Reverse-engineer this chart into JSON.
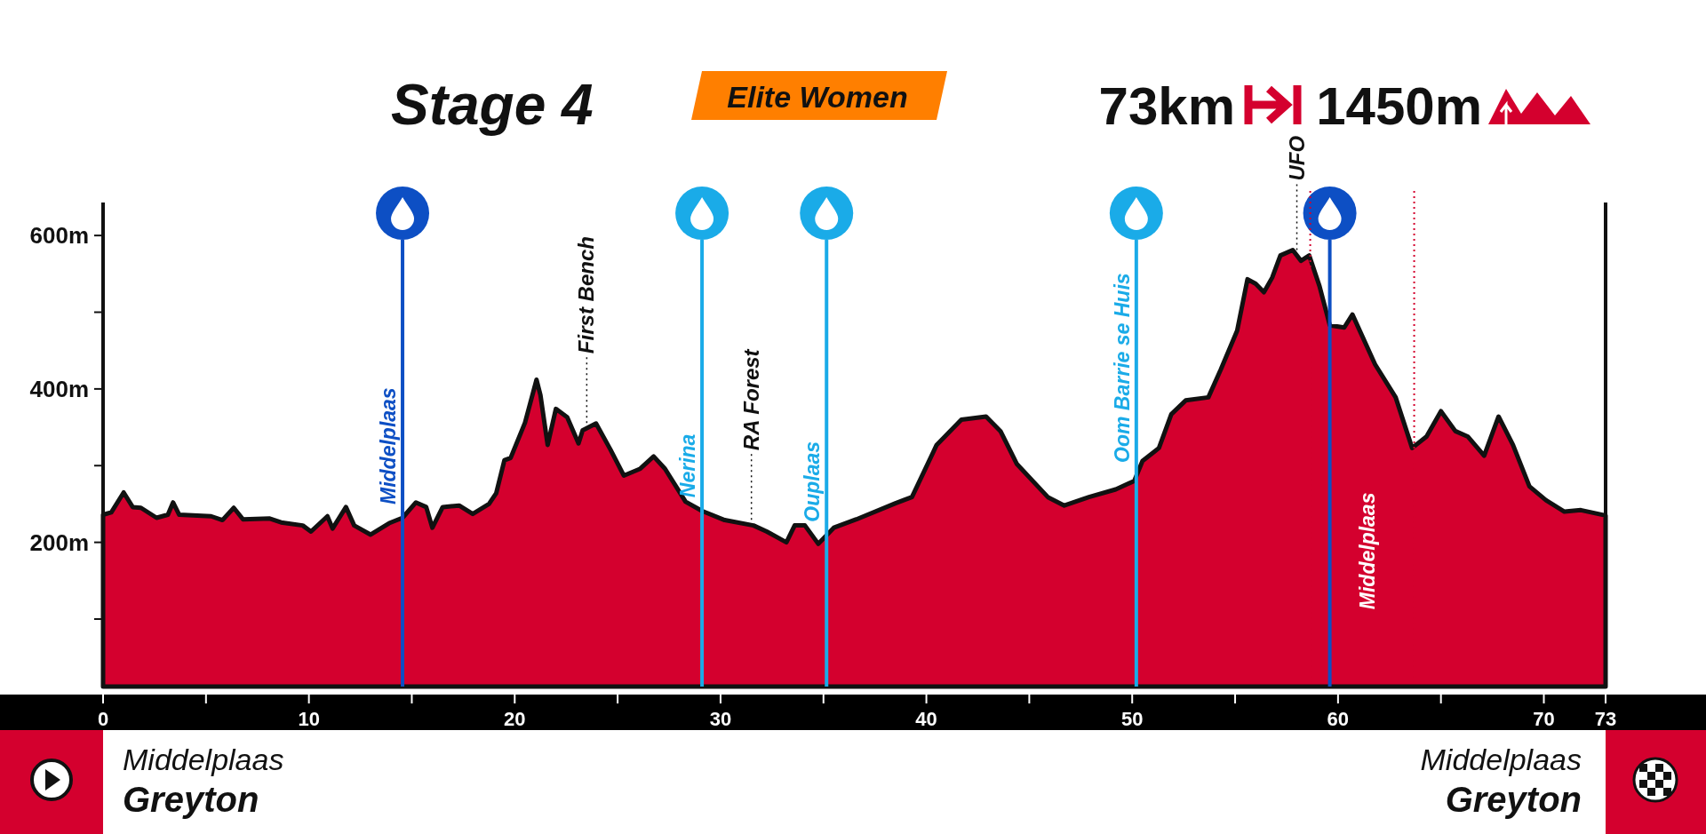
{
  "chart_data": {
    "type": "area",
    "title": "Stage 4",
    "subtitle": "Elite Women",
    "annotations": [
      "73km",
      "1450m",
      "Middelplaas",
      "Greyton",
      "Middelplaas",
      "Greyton"
    ],
    "x": [
      0,
      0.4,
      1.0,
      1.44,
      1.84,
      2.6,
      3.15,
      3.4,
      3.7,
      5.25,
      5.8,
      6.35,
      6.8,
      8.1,
      8.65,
      9.7,
      10.1,
      10.9,
      11.15,
      11.8,
      12.2,
      13.0,
      13.9,
      14.55,
      15.2,
      15.7,
      16.0,
      16.5,
      17.3,
      17.96,
      18.75,
      19.1,
      19.5,
      19.8,
      20.5,
      21.06,
      21.25,
      21.6,
      22.0,
      22.55,
      23.1,
      23.3,
      23.95,
      24.65,
      25.3,
      26.1,
      26.75,
      27.3,
      28.3,
      29.1,
      30.2,
      31.6,
      32.25,
      33.2,
      33.6,
      34.1,
      34.75,
      35.5,
      36.6,
      38.5,
      39.3,
      40.5,
      41.7,
      42.9,
      43.6,
      44.4,
      45.9,
      46.7,
      47.9,
      49.2,
      50.1,
      50.5,
      51.3,
      51.9,
      52.6,
      53.7,
      54.3,
      55.1,
      55.6,
      56.0,
      56.4,
      56.8,
      57.2,
      57.8,
      58.2,
      58.6,
      59.1,
      59.6,
      60.3,
      60.7,
      61.8,
      62.8,
      63.6,
      64.3,
      65.0,
      65.7,
      66.3,
      67.1,
      67.8,
      68.5,
      69.3,
      70.1,
      71.0,
      71.8,
      73
    ],
    "series": [
      {
        "color": "#d4002e",
        "values": [
          236,
          239,
          265,
          246,
          245,
          232,
          236,
          252,
          236,
          234,
          229,
          245,
          230,
          231,
          226,
          222,
          214,
          234,
          218,
          246,
          222,
          210,
          225,
          232,
          252,
          246,
          219,
          246,
          248,
          237,
          250,
          264,
          307,
          310,
          356,
          412,
          392,
          327,
          374,
          363,
          329,
          346,
          355,
          321,
          287,
          296,
          312,
          296,
          253,
          241,
          229,
          222,
          214,
          200,
          222,
          222,
          198,
          219,
          230,
          251,
          259,
          327,
          360,
          364,
          345,
          302,
          259,
          248,
          259,
          269,
          280,
          306,
          323,
          367,
          385,
          389,
          425,
          476,
          543,
          537,
          526,
          545,
          574,
          581,
          567,
          574,
          534,
          483,
          480,
          497,
          432,
          389,
          323,
          338,
          371,
          345,
          338,
          313,
          364,
          327,
          273,
          255,
          240,
          242,
          235
        ]
      }
    ],
    "xlim": [
      0,
      73
    ],
    "xticks": [
      0,
      {
        "value": 5,
        "label": null
      },
      10,
      {
        "value": 15,
        "label": null
      },
      20,
      {
        "value": 25,
        "label": null
      },
      30,
      {
        "value": 35,
        "label": null
      },
      40,
      {
        "value": 45,
        "label": null
      },
      50,
      {
        "value": 55,
        "label": null
      },
      60,
      {
        "value": 65,
        "label": null
      },
      70,
      73
    ],
    "ylim": [
      12,
      643
    ],
    "yticks": [
      {
        "value": 100,
        "label": null
      },
      {
        "value": 200,
        "label": "200m"
      },
      {
        "value": 300,
        "label": null
      },
      {
        "value": 400,
        "label": "400m"
      },
      {
        "value": 500,
        "label": null
      },
      {
        "value": 600,
        "label": "600m"
      }
    ],
    "ref_lines": [
      {
        "axis": "x",
        "value": 14.55,
        "label": "Middelplaas",
        "color": "#0d4fc4",
        "line_style": "solid"
      },
      {
        "axis": "x",
        "value": 23.5,
        "label": "First Bench",
        "color": "#111111",
        "line_style": "dotted"
      },
      {
        "axis": "x",
        "value": 29.1,
        "label": "Nerina",
        "color": "#1aabe8",
        "line_style": "solid"
      },
      {
        "axis": "x",
        "value": 31.5,
        "label": "RA Forest",
        "color": "#111111",
        "line_style": "dotted"
      },
      {
        "axis": "x",
        "value": 35.15,
        "label": "Ouplaas",
        "color": "#1aabe8",
        "line_style": "solid"
      },
      {
        "axis": "x",
        "value": 50.2,
        "label": "Oom Barrie se Huis",
        "color": "#1aabe8",
        "line_style": "solid"
      },
      {
        "axis": "x",
        "value": 58.0,
        "label": "UFO",
        "color": "#111111",
        "line_style": "dotted"
      },
      {
        "axis": "x",
        "value": 59.6,
        "label": "Middelplaas",
        "color": "#0d4fc4",
        "line_style": "solid"
      },
      {
        "axis": "x",
        "value": 58.65,
        "color": "#d4002e",
        "line_style": "dotted"
      },
      {
        "axis": "x",
        "value": 63.7,
        "color": "#d4002e",
        "line_style": "dotted"
      }
    ],
    "grid": false
  }
}
